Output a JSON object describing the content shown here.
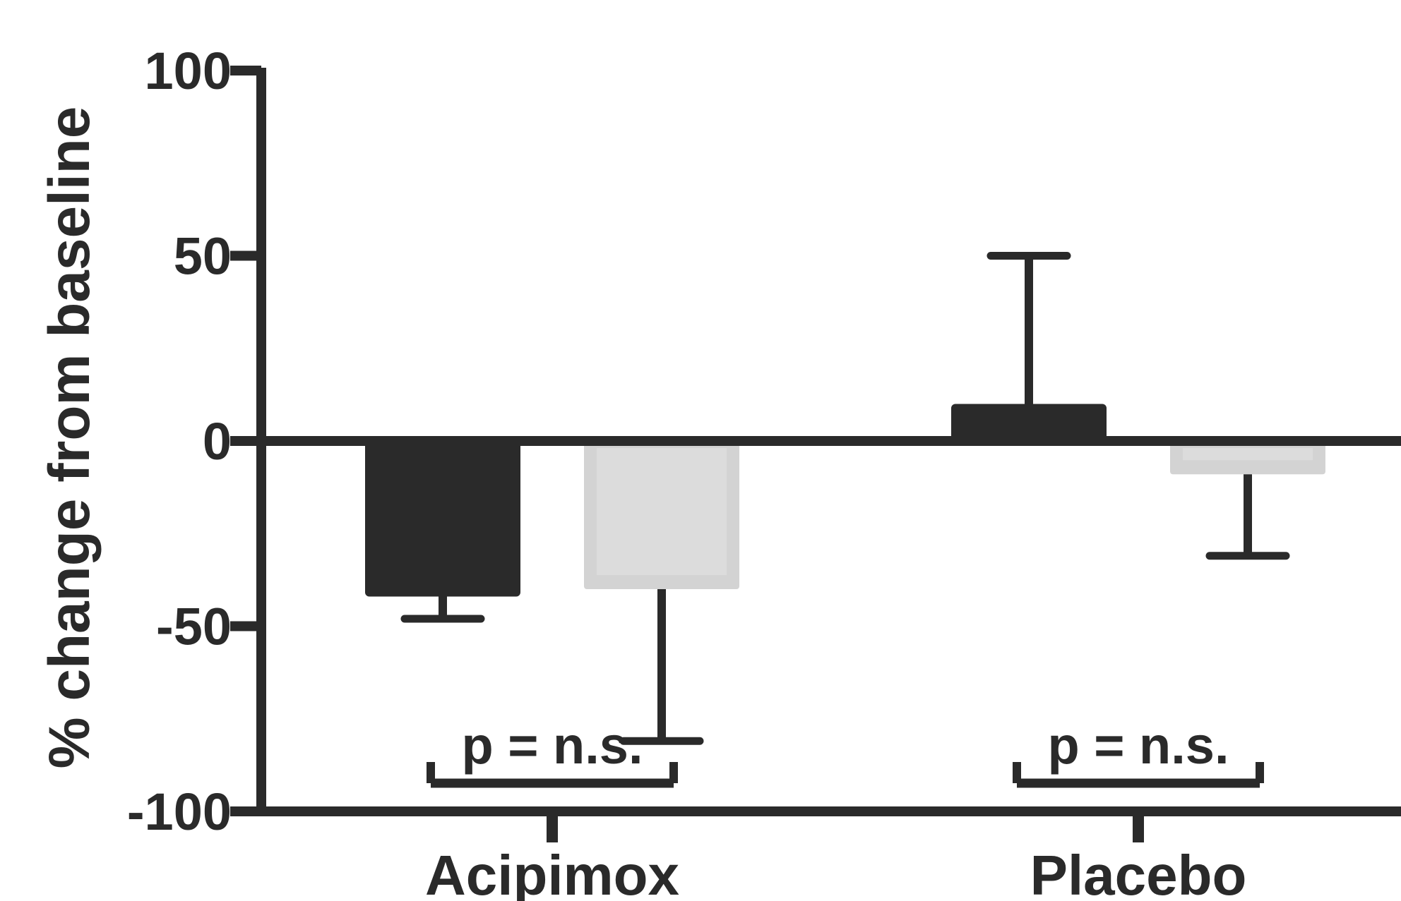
{
  "chart_data": {
    "type": "bar",
    "title": "",
    "xlabel": "",
    "ylabel": "% change from baseline",
    "ylim": [
      -100,
      100
    ],
    "yticks": [
      100,
      50,
      0,
      -50,
      -100
    ],
    "categories": [
      "Acipimox",
      "Placebo"
    ],
    "series": [
      {
        "color": "#2a2a2a",
        "values": [
          -42,
          10
        ],
        "error": [
          6,
          40
        ],
        "error_direction": [
          "down",
          "up"
        ]
      },
      {
        "color": "#d3d3d3",
        "values": [
          -40,
          -9
        ],
        "error": [
          41,
          22
        ],
        "error_direction": [
          "down",
          "down"
        ]
      }
    ],
    "annotations": [
      {
        "category": "Acipimox",
        "text": "p = n.s."
      },
      {
        "category": "Placebo",
        "text": "p = n.s."
      }
    ],
    "grid": false,
    "legend": "none"
  },
  "colors": {
    "axis": "#2a2a2a",
    "dark_bar": "#2a2a2a",
    "light_bar": "#d3d3d3",
    "light_bar_inner": "#dcdcdc"
  }
}
